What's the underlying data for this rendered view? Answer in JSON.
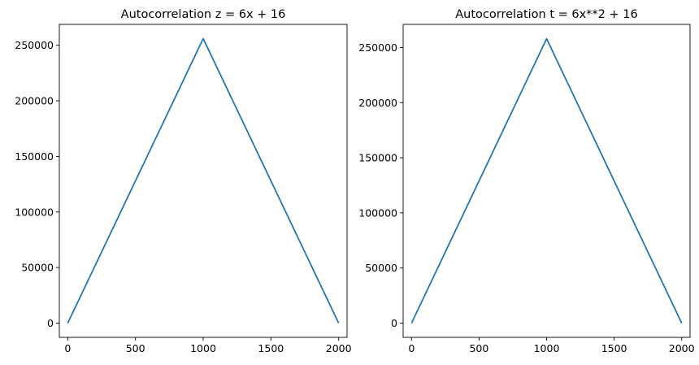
{
  "chart_data": [
    {
      "type": "line",
      "title": "Autocorrelation z = 6x + 16",
      "xlim": [
        -62,
        2062
      ],
      "ylim": [
        -12800,
        268800
      ],
      "x_ticks": [
        0,
        500,
        1000,
        1500,
        2000
      ],
      "y_ticks": [
        0,
        50000,
        100000,
        150000,
        200000,
        250000
      ],
      "series": [
        {
          "color": "#1f77b4",
          "x": [
            0,
            1000,
            2000
          ],
          "y": [
            0,
            256000,
            0
          ]
        }
      ],
      "grid": false,
      "legend": "none"
    },
    {
      "type": "line",
      "title": "Autocorrelation t = 6x**2 + 16",
      "xlim": [
        -62,
        2062
      ],
      "ylim": [
        -12900,
        271000
      ],
      "x_ticks": [
        0,
        500,
        1000,
        1500,
        2000
      ],
      "y_ticks": [
        0,
        50000,
        100000,
        150000,
        200000,
        250000
      ],
      "series": [
        {
          "color": "#1f77b4",
          "x": [
            0,
            1000,
            2000
          ],
          "y": [
            0,
            258000,
            0
          ]
        }
      ],
      "grid": false,
      "legend": "none"
    }
  ]
}
